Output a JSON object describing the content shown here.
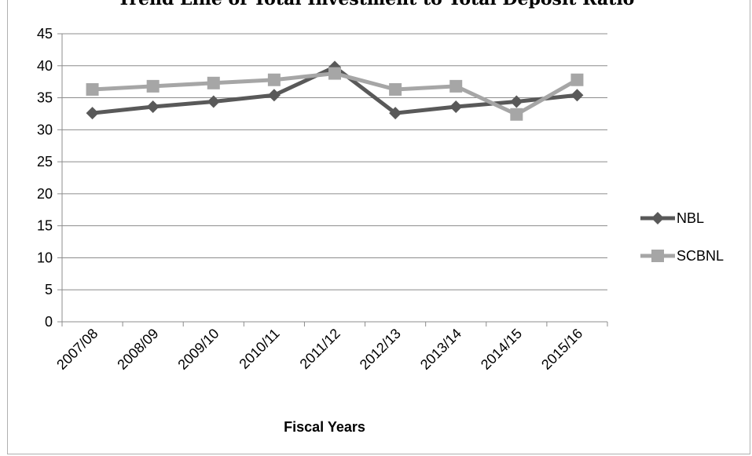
{
  "chart_data": {
    "type": "line",
    "title": "Trend Line of Total Investment to Total Deposit Ratio",
    "xlabel": "Fiscal Years",
    "ylabel": "",
    "categories": [
      "2007/08",
      "2008/09",
      "2009/10",
      "2010/11",
      "2011/12",
      "2012/13",
      "2013/14",
      "2014/15",
      "2015/16"
    ],
    "ylim": [
      0,
      45
    ],
    "yticks": [
      0,
      5,
      10,
      15,
      20,
      25,
      30,
      35,
      40,
      45
    ],
    "grid": true,
    "legend_position": "right",
    "series": [
      {
        "name": "NBL",
        "marker": "diamond",
        "color": "#595959",
        "values": [
          32.6,
          33.6,
          34.4,
          35.4,
          39.8,
          32.6,
          33.6,
          34.4,
          35.4
        ]
      },
      {
        "name": "SCBNL",
        "marker": "square",
        "color": "#a6a6a6",
        "values": [
          36.3,
          36.8,
          37.3,
          37.8,
          38.8,
          36.3,
          36.8,
          32.4,
          37.8
        ]
      }
    ]
  }
}
